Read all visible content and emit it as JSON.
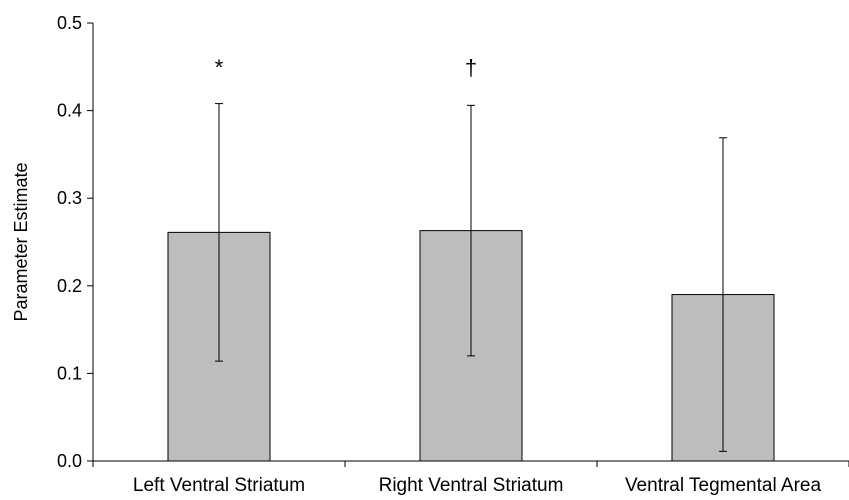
{
  "chart_data": {
    "type": "bar",
    "title": "",
    "xlabel": "",
    "ylabel": "Parameter Estimate",
    "ylim": [
      0,
      0.5
    ],
    "yticks": [
      "0.0",
      "0.1",
      "0.2",
      "0.3",
      "0.4",
      "0.5"
    ],
    "categories": [
      "Left Ventral Striatum",
      "Right Ventral Striatum",
      "Ventral Tegmental Area"
    ],
    "values": [
      0.261,
      0.263,
      0.19
    ],
    "error_low": [
      0.114,
      0.12,
      0.011
    ],
    "error_high": [
      0.408,
      0.406,
      0.369
    ],
    "significance": [
      "*",
      "†",
      ""
    ],
    "colors": {
      "bar": "#bdbdbd",
      "axis": "#000000"
    },
    "grid": false
  }
}
